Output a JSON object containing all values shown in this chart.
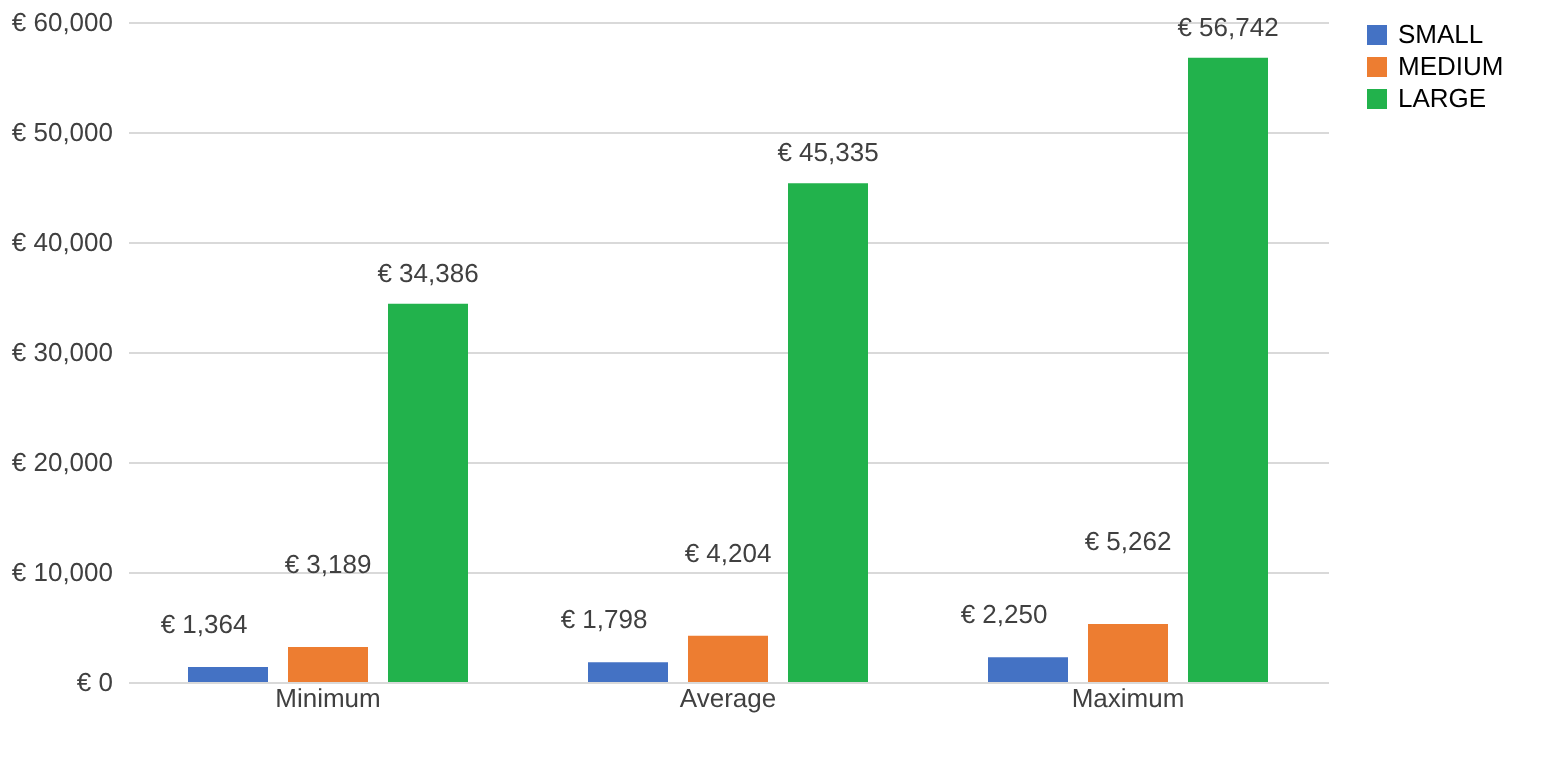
{
  "chart_data": {
    "type": "bar",
    "categories": [
      "Minimum",
      "Average",
      "Maximum"
    ],
    "series": [
      {
        "name": "SMALL",
        "color": "#4472c4",
        "values": [
          1364,
          1798,
          2250
        ],
        "value_labels": [
          "€ 1,364",
          "€ 1,798",
          "€ 2,250"
        ]
      },
      {
        "name": "MEDIUM",
        "color": "#ed7d31",
        "values": [
          3189,
          4204,
          5262
        ],
        "value_labels": [
          "€ 3,189",
          "€ 4,204",
          "€ 5,262"
        ]
      },
      {
        "name": "LARGE",
        "color": "#22b24c",
        "values": [
          34386,
          45335,
          56742
        ],
        "value_labels": [
          "€ 34,386",
          "€ 45,335",
          "€ 56,742"
        ]
      }
    ],
    "ylim": [
      0,
      60000
    ],
    "yticks": [
      {
        "value": 0,
        "label": "€ 0"
      },
      {
        "value": 10000,
        "label": "€ 10,000"
      },
      {
        "value": 20000,
        "label": "€ 20,000"
      },
      {
        "value": 30000,
        "label": "€ 30,000"
      },
      {
        "value": 40000,
        "label": "€ 40,000"
      },
      {
        "value": 50000,
        "label": "€ 50,000"
      },
      {
        "value": 60000,
        "label": "€ 60,000"
      }
    ],
    "grid": "y",
    "legend": "right"
  }
}
